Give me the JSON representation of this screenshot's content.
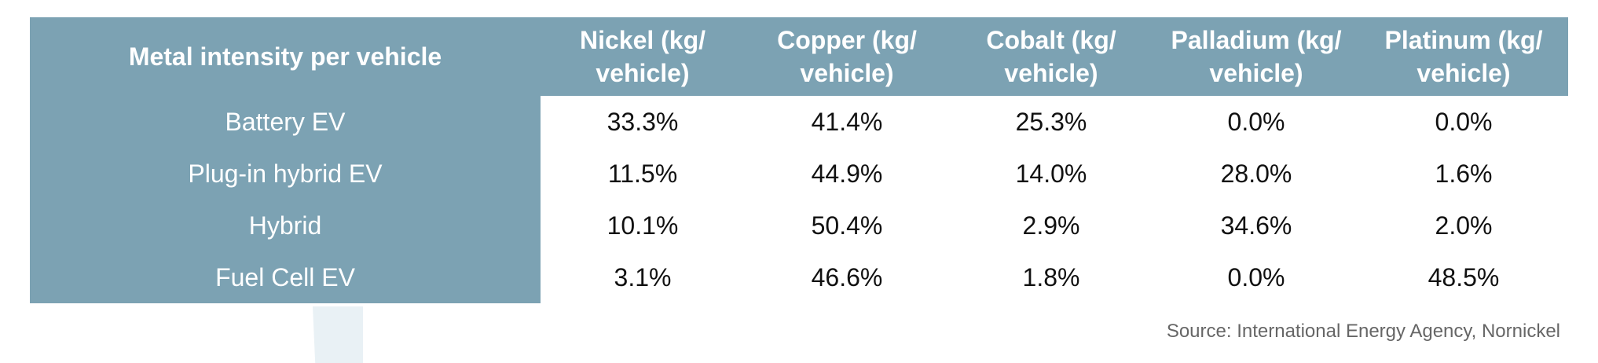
{
  "table": {
    "header": {
      "row_label": "Metal intensity per vehicle",
      "columns": [
        [
          "Nickel (kg/",
          "vehicle)"
        ],
        [
          "Copper (kg/",
          "vehicle)"
        ],
        [
          "Cobalt (kg/",
          "vehicle)"
        ],
        [
          "Palladium (kg/",
          "vehicle)"
        ],
        [
          "Platinum (kg/",
          "vehicle)"
        ]
      ]
    },
    "rows": [
      {
        "label": "Battery EV",
        "values": [
          "33.3%",
          "41.4%",
          "25.3%",
          "0.0%",
          "0.0%"
        ]
      },
      {
        "label": "Plug-in hybrid EV",
        "values": [
          "11.5%",
          "44.9%",
          "14.0%",
          "28.0%",
          "1.6%"
        ]
      },
      {
        "label": "Hybrid",
        "values": [
          "10.1%",
          "50.4%",
          "2.9%",
          "34.6%",
          "2.0%"
        ]
      },
      {
        "label": "Fuel Cell EV",
        "values": [
          "3.1%",
          "46.6%",
          "1.8%",
          "0.0%",
          "48.5%"
        ]
      }
    ]
  },
  "source": "Source: International Energy Agency, Nornickel",
  "colors": {
    "header_background": "#7ca2b3",
    "header_text": "#ffffff",
    "body_text": "#111111",
    "source_text": "#666666",
    "watermark": "#e9f1f5"
  }
}
